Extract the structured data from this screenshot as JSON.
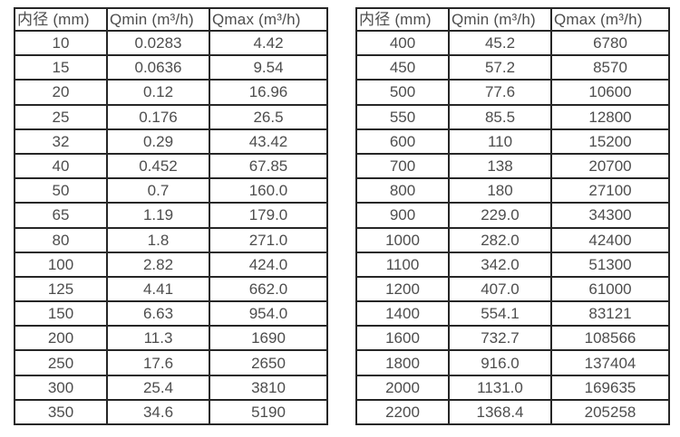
{
  "page": {
    "background_color": "#ffffff",
    "border_color": "#262626",
    "text_color": "#4d4d4d"
  },
  "tables": [
    {
      "name": "small-diameter-flow-spec",
      "headers": [
        "内径 (mm)",
        "Qmin (m³/h)",
        "Qmax (m³/h)"
      ],
      "rows": [
        [
          "10",
          "0.0283",
          "4.42"
        ],
        [
          "15",
          "0.0636",
          "9.54"
        ],
        [
          "20",
          "0.12",
          "16.96"
        ],
        [
          "25",
          "0.176",
          "26.5"
        ],
        [
          "32",
          "0.29",
          "43.42"
        ],
        [
          "40",
          "0.452",
          "67.85"
        ],
        [
          "50",
          "0.7",
          "160.0"
        ],
        [
          "65",
          "1.19",
          "179.0"
        ],
        [
          "80",
          "1.8",
          "271.0"
        ],
        [
          "100",
          "2.82",
          "424.0"
        ],
        [
          "125",
          "4.41",
          "662.0"
        ],
        [
          "150",
          "6.63",
          "954.0"
        ],
        [
          "200",
          "11.3",
          "1690"
        ],
        [
          "250",
          "17.6",
          "2650"
        ],
        [
          "300",
          "25.4",
          "3810"
        ],
        [
          "350",
          "34.6",
          "5190"
        ]
      ]
    },
    {
      "name": "large-diameter-flow-spec",
      "headers": [
        "内径 (mm)",
        "Qmin (m³/h)",
        "Qmax (m³/h)"
      ],
      "rows": [
        [
          "400",
          "45.2",
          "6780"
        ],
        [
          "450",
          "57.2",
          "8570"
        ],
        [
          "500",
          "77.6",
          "10600"
        ],
        [
          "550",
          "85.5",
          "12800"
        ],
        [
          "600",
          "110",
          "15200"
        ],
        [
          "700",
          "138",
          "20700"
        ],
        [
          "800",
          "180",
          "27100"
        ],
        [
          "900",
          "229.0",
          "34300"
        ],
        [
          "1000",
          "282.0",
          "42400"
        ],
        [
          "1100",
          "342.0",
          "51300"
        ],
        [
          "1200",
          "407.0",
          "61000"
        ],
        [
          "1400",
          "554.1",
          "83121"
        ],
        [
          "1600",
          "732.7",
          "108566"
        ],
        [
          "1800",
          "916.0",
          "137404"
        ],
        [
          "2000",
          "1131.0",
          "169635"
        ],
        [
          "2200",
          "1368.4",
          "205258"
        ]
      ]
    }
  ]
}
